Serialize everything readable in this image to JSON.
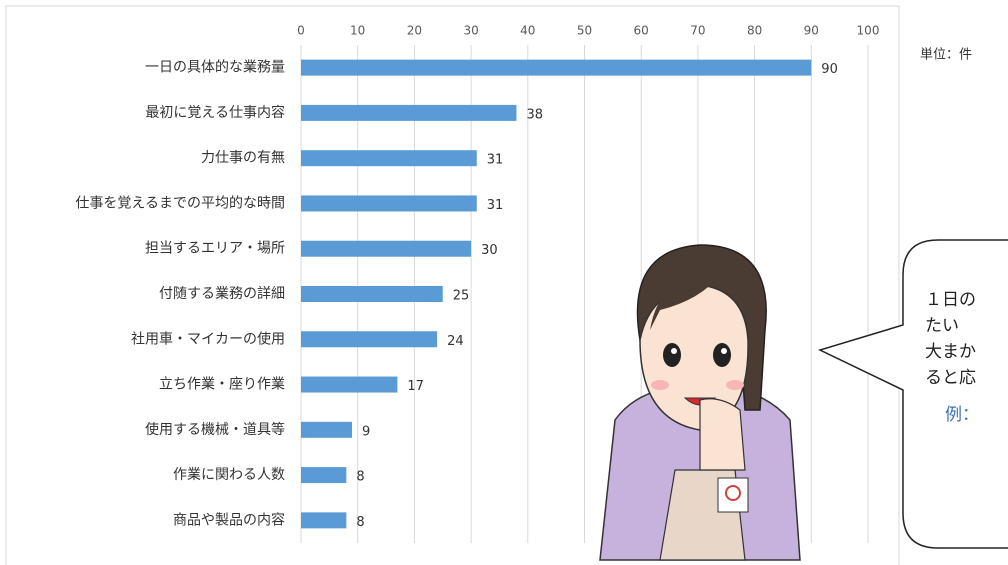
{
  "chart_data": {
    "type": "bar",
    "orientation": "horizontal",
    "categories": [
      "一日の具体的な業務量",
      "最初に覚える仕事内容",
      "力仕事の有無",
      "仕事を覚えるまでの平均的な時間",
      "担当するエリア・場所",
      "付随する業務の詳細",
      "社用車・マイカーの使用",
      "立ち作業・座り作業",
      "使用する機械・道具等",
      "作業に関わる人数",
      "商品や製品の内容"
    ],
    "values": [
      90,
      38,
      31,
      31,
      30,
      25,
      24,
      17,
      9,
      8,
      8
    ],
    "color": "#5b9bd5",
    "xlim": [
      0,
      100
    ],
    "xticks": [
      0,
      10,
      20,
      30,
      40,
      50,
      60,
      70,
      80,
      90,
      100
    ],
    "grid": true,
    "unit_label": "単位：件"
  },
  "speech_bubble": {
    "lines": [
      "１日の",
      "たい",
      "大まか",
      "ると応"
    ],
    "example": "例："
  }
}
